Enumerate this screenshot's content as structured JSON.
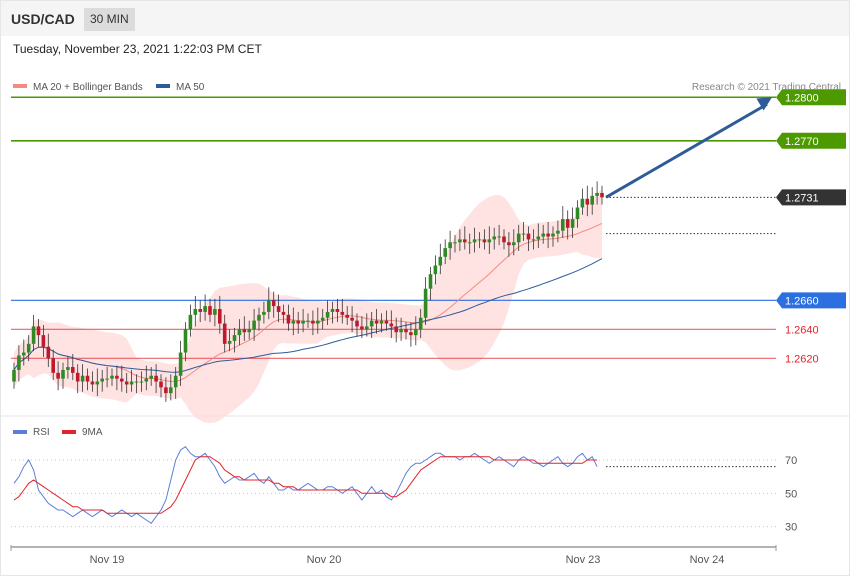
{
  "header": {
    "symbol": "USD/CAD",
    "timeframe": "30 MIN",
    "timestamp": "Tuesday, November 23, 2021 1:22:03 PM CET"
  },
  "price_panel": {
    "legend": [
      {
        "label": "MA 20 + Bollinger Bands",
        "color": "#f28b82"
      },
      {
        "label": "MA 50",
        "color": "#2e5c9a"
      }
    ],
    "copyright": "Research © 2021 Trading Central"
  },
  "rsi_panel": {
    "legend": [
      {
        "label": "RSI",
        "color": "#5b7fd6"
      },
      {
        "label": "9MA",
        "color": "#e0242b"
      }
    ]
  },
  "chart_data": [
    {
      "type": "line",
      "panel": "price",
      "x_tick_labels": [
        "Nov 19",
        "Nov 20",
        "Nov 23",
        "Nov 24"
      ],
      "ylim": [
        1.2583,
        1.2805
      ],
      "levels": [
        {
          "label": "1.2800",
          "value": 1.28,
          "style": "resistance",
          "color": "#4c9a00",
          "tag": true
        },
        {
          "label": "1.2770",
          "value": 1.277,
          "style": "resistance",
          "color": "#4c9a00",
          "tag": true
        },
        {
          "label": "1.2731",
          "value": 1.2731,
          "style": "current",
          "color": "#333333",
          "tag": true
        },
        {
          "label": "1.2660",
          "value": 1.266,
          "style": "pivot",
          "color": "#2c6fe0",
          "tag": true
        },
        {
          "label": "1.2640",
          "value": 1.264,
          "style": "support",
          "color": "#e0242b",
          "tag": false
        },
        {
          "label": "1.2620",
          "value": 1.262,
          "style": "support",
          "color": "#e0242b",
          "tag": false
        }
      ],
      "last_close": 1.2731,
      "arrow": {
        "from": 1.2731,
        "to": 1.28,
        "color": "#2e5c9a"
      },
      "series": [
        {
          "name": "MA 20 + Bollinger Bands",
          "color": "#f28b82"
        },
        {
          "name": "MA 50",
          "color": "#2e5c9a"
        }
      ],
      "candles": [
        1.2612,
        1.2622,
        1.2624,
        1.263,
        1.2642,
        1.2636,
        1.2628,
        1.262,
        1.261,
        1.2606,
        1.2612,
        1.2614,
        1.261,
        1.2604,
        1.2608,
        1.2604,
        1.2602,
        1.2604,
        1.2606,
        1.2606,
        1.2608,
        1.2606,
        1.2604,
        1.2602,
        1.2604,
        1.2604,
        1.2604,
        1.2606,
        1.2608,
        1.2604,
        1.26,
        1.2596,
        1.26,
        1.2608,
        1.2624,
        1.264,
        1.265,
        1.2654,
        1.2652,
        1.2656,
        1.265,
        1.2654,
        1.2644,
        1.263,
        1.2632,
        1.2636,
        1.264,
        1.2638,
        1.264,
        1.2646,
        1.265,
        1.2652,
        1.266,
        1.2656,
        1.2652,
        1.265,
        1.2644,
        1.2646,
        1.2644,
        1.2646,
        1.2646,
        1.2644,
        1.2646,
        1.2648,
        1.2652,
        1.2654,
        1.2652,
        1.265,
        1.2648,
        1.2646,
        1.2642,
        1.264,
        1.2642,
        1.2646,
        1.2644,
        1.2646,
        1.2644,
        1.2642,
        1.2638,
        1.264,
        1.2638,
        1.2636,
        1.264,
        1.2648,
        1.2668,
        1.2678,
        1.2684,
        1.269,
        1.2696,
        1.27,
        1.27,
        1.2702,
        1.27,
        1.27,
        1.2702,
        1.2702,
        1.27,
        1.2702,
        1.2704,
        1.2704,
        1.27,
        1.2698,
        1.27,
        1.2706,
        1.2706,
        1.2702,
        1.2702,
        1.2704,
        1.2706,
        1.2704,
        1.2706,
        1.2708,
        1.2716,
        1.271,
        1.2716,
        1.2724,
        1.273,
        1.2726,
        1.2732,
        1.2734,
        1.2731
      ]
    },
    {
      "type": "line",
      "panel": "rsi",
      "ylim": [
        22,
        82
      ],
      "y_ticks": [
        30,
        50,
        70
      ],
      "series": [
        {
          "name": "RSI",
          "color": "#5b7fd6",
          "values": [
            56,
            60,
            66,
            70,
            64,
            52,
            48,
            44,
            42,
            40,
            40,
            38,
            36,
            38,
            40,
            38,
            36,
            38,
            40,
            38,
            36,
            38,
            40,
            38,
            36,
            38,
            36,
            34,
            32,
            36,
            40,
            46,
            58,
            70,
            76,
            78,
            74,
            72,
            72,
            74,
            70,
            66,
            60,
            56,
            58,
            60,
            58,
            58,
            60,
            62,
            58,
            56,
            60,
            56,
            52,
            52,
            54,
            52,
            52,
            54,
            56,
            54,
            52,
            52,
            54,
            54,
            52,
            50,
            52,
            54,
            50,
            46,
            50,
            54,
            50,
            52,
            48,
            46,
            50,
            56,
            62,
            66,
            68,
            68,
            70,
            72,
            74,
            74,
            72,
            72,
            72,
            70,
            72,
            72,
            74,
            72,
            70,
            68,
            70,
            72,
            70,
            68,
            66,
            70,
            72,
            70,
            68,
            68,
            66,
            68,
            70,
            72,
            68,
            66,
            68,
            72,
            74,
            70,
            72,
            66
          ]
        },
        {
          "name": "9MA",
          "color": "#e0242b",
          "values": [
            46,
            48,
            52,
            56,
            58,
            56,
            54,
            52,
            50,
            48,
            46,
            44,
            42,
            42,
            40,
            40,
            40,
            40,
            40,
            38,
            38,
            38,
            38,
            38,
            38,
            38,
            38,
            38,
            38,
            38,
            38,
            40,
            42,
            46,
            52,
            58,
            64,
            70,
            72,
            72,
            72,
            70,
            68,
            64,
            62,
            60,
            60,
            58,
            58,
            58,
            58,
            58,
            58,
            56,
            56,
            54,
            54,
            54,
            52,
            52,
            52,
            52,
            52,
            52,
            52,
            52,
            52,
            52,
            52,
            52,
            52,
            50,
            50,
            50,
            50,
            50,
            50,
            48,
            48,
            50,
            52,
            56,
            60,
            64,
            66,
            68,
            70,
            72,
            72,
            72,
            72,
            72,
            72,
            72,
            72,
            72,
            72,
            72,
            70,
            70,
            70,
            70,
            70,
            70,
            70,
            70,
            70,
            68,
            68,
            68,
            68,
            68,
            68,
            68,
            68,
            68,
            68,
            70,
            70,
            70
          ]
        }
      ]
    }
  ]
}
